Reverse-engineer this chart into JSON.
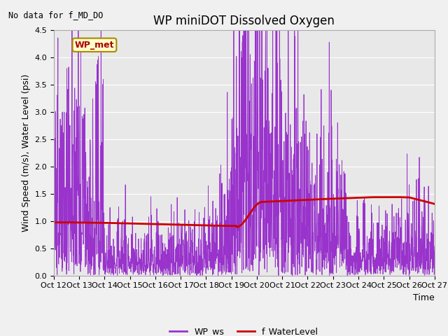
{
  "title": "WP miniDOT Dissolved Oxygen",
  "no_data_text": "No data for f_MD_DO",
  "ylabel": "Wind Speed (m/s), Water Level (psi)",
  "xlabel": "Time",
  "ylim": [
    0.0,
    4.5
  ],
  "fig_facecolor": "#f0f0f0",
  "plot_bg_color": "#e8e8e8",
  "wp_ws_color": "#9933cc",
  "f_wl_color": "#cc0000",
  "legend_label_ws": "WP_ws",
  "legend_label_wl": "f_WaterLevel",
  "legend_box_label": "WP_met",
  "xtick_labels": [
    "Oct 12",
    "Oct 13",
    "Oct 14",
    "Oct 15",
    "Oct 16",
    "Oct 17",
    "Oct 18",
    "Oct 19",
    "Oct 20",
    "Oct 21",
    "Oct 22",
    "Oct 23",
    "Oct 24",
    "Oct 25",
    "Oct 26",
    "Oct 27"
  ],
  "xtick_positions": [
    0,
    1,
    2,
    3,
    4,
    5,
    6,
    7,
    8,
    9,
    10,
    11,
    12,
    13,
    14,
    15
  ],
  "title_fontsize": 12,
  "axis_fontsize": 9,
  "tick_fontsize": 8,
  "grid_color": "#ffffff",
  "n_points": 2000,
  "xlim": [
    0,
    15
  ]
}
